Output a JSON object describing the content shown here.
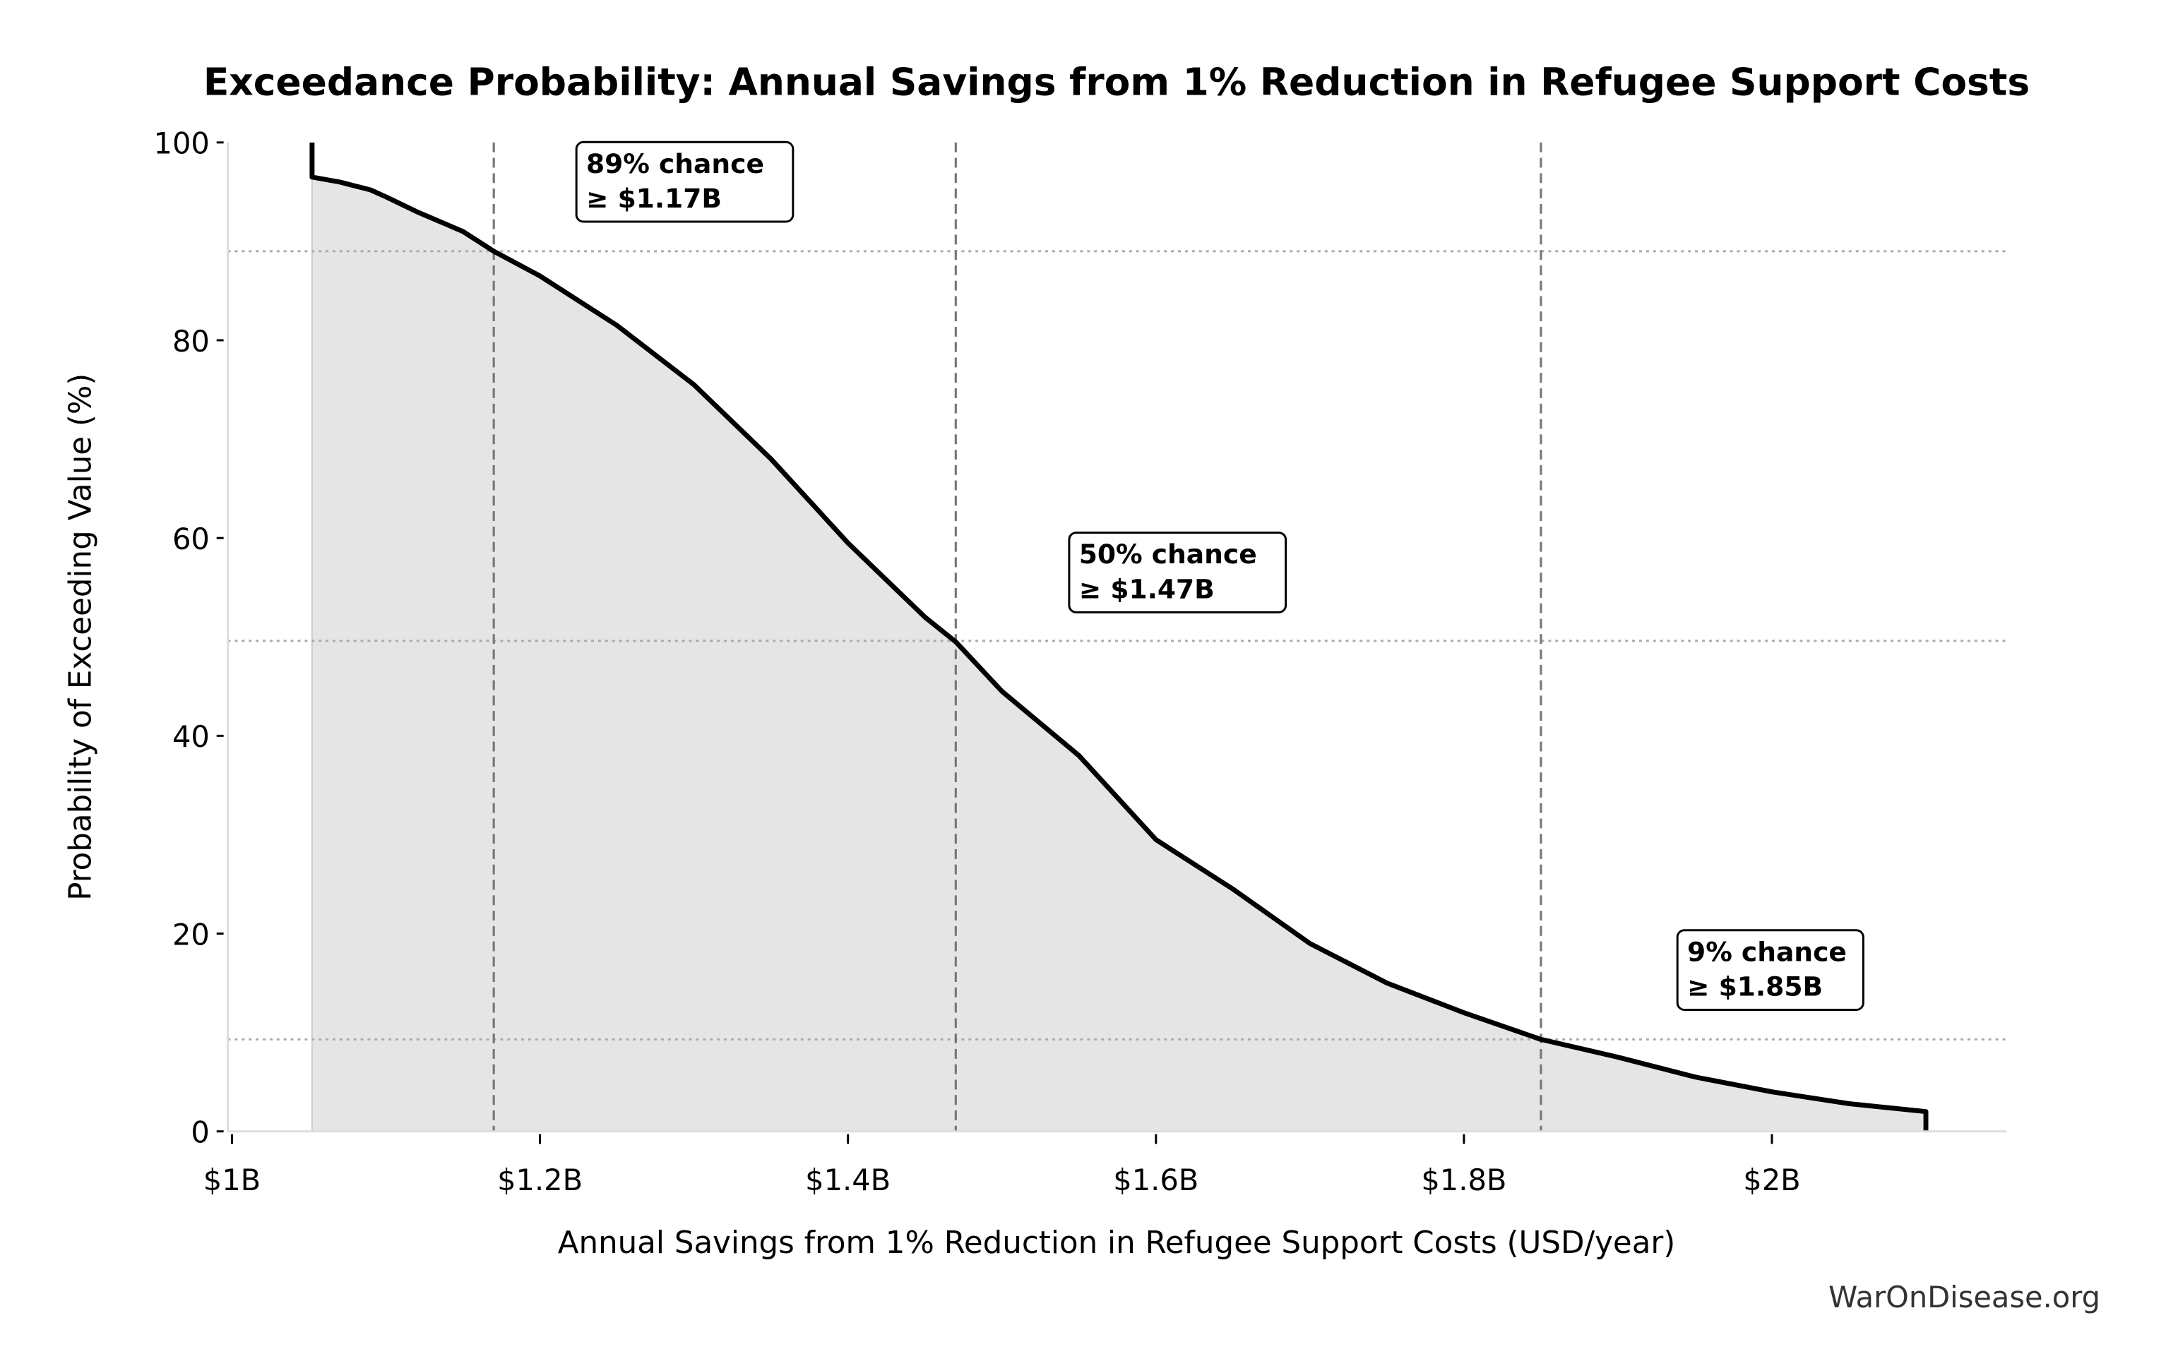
{
  "chart_data": {
    "type": "area",
    "title": "Exceedance Probability: Annual Savings from 1% Reduction in Refugee Support Costs",
    "xlabel": "Annual Savings from 1% Reduction in Refugee Support Costs (USD/year)",
    "ylabel": "Probability of Exceeding Value (%)",
    "xlim": [
      1.0,
      2.15
    ],
    "ylim": [
      0,
      100
    ],
    "x_unit": "billion USD",
    "x_ticks": [
      1.0,
      1.2,
      1.4,
      1.6,
      1.8,
      2.0
    ],
    "x_tick_labels": [
      "$1B",
      "$1.2B",
      "$1.4B",
      "$1.6B",
      "$1.8B",
      "$2B"
    ],
    "y_ticks": [
      0,
      20,
      40,
      60,
      80,
      100
    ],
    "y_tick_labels": [
      "0",
      "20",
      "40",
      "60",
      "80",
      "100"
    ],
    "grid": false,
    "series": [
      {
        "name": "Exceedance curve",
        "color": "#000000",
        "fill": "#e5e5e5",
        "x": [
          1.052,
          1.052,
          1.07,
          1.09,
          1.1,
          1.12,
          1.15,
          1.17,
          1.2,
          1.25,
          1.3,
          1.35,
          1.4,
          1.45,
          1.47,
          1.5,
          1.55,
          1.6,
          1.65,
          1.7,
          1.75,
          1.8,
          1.85,
          1.9,
          1.95,
          2.0,
          2.05,
          2.1,
          2.1
        ],
        "y": [
          100,
          96.5,
          96,
          95.2,
          94.5,
          93,
          91,
          89,
          86.5,
          81.5,
          75.5,
          68,
          59.5,
          52,
          49.5,
          44.5,
          38,
          29.5,
          24.5,
          19,
          15,
          12,
          9.3,
          7.5,
          5.5,
          4,
          2.8,
          2,
          0
        ]
      }
    ],
    "reference_lines": [
      {
        "x": 1.17,
        "y": 89,
        "label_line1": "89% chance",
        "label_line2": "≥ $1.17B",
        "label_x": 1.23,
        "label_y": 97.5
      },
      {
        "x": 1.47,
        "y": 49.6,
        "label_line1": "50% chance",
        "label_line2": "≥ $1.47B",
        "label_x": 1.55,
        "label_y": 58
      },
      {
        "x": 1.85,
        "y": 9.3,
        "label_line1": "9% chance",
        "label_line2": "≥ $1.85B",
        "label_x": 1.945,
        "label_y": 17.8
      }
    ],
    "watermark": "WarOnDisease.org"
  }
}
